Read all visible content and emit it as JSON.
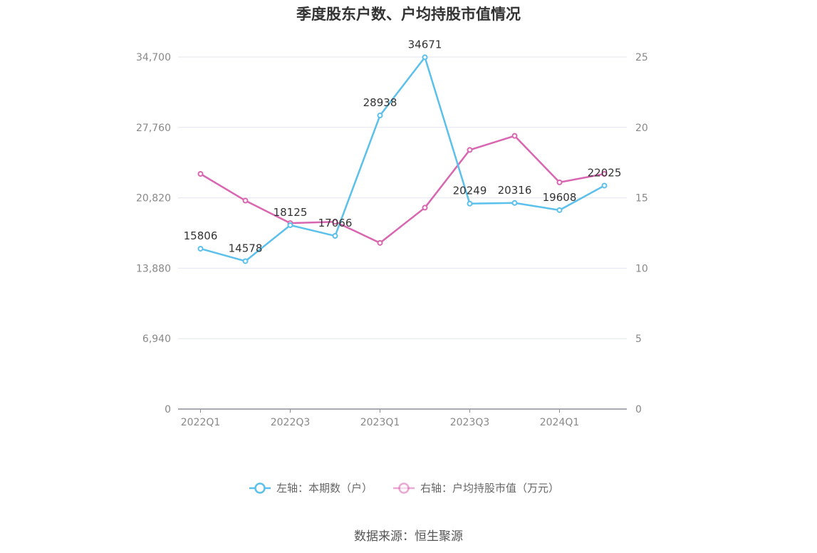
{
  "title": "季度股东户数、户均持股市值情况",
  "source": "数据来源：恒生聚源",
  "colors": {
    "left_series": "#5bc0eb",
    "right_series": "#d966b0",
    "grid": "#e3e6ef",
    "axis": "#8d8d99"
  },
  "chart_data": {
    "type": "line",
    "title": "季度股东户数、户均持股市值情况",
    "categories": [
      "2022Q1",
      "2022Q2",
      "2022Q3",
      "2022Q4",
      "2023Q1",
      "2023Q2",
      "2023Q3",
      "2023Q4",
      "2024Q1",
      "2024Q2"
    ],
    "x_tick_labels": [
      "2022Q1",
      "2022Q3",
      "2023Q1",
      "2023Q3",
      "2024Q1"
    ],
    "y_left": {
      "ticks": [
        "0",
        "6,940",
        "13,880",
        "20,820",
        "27,760",
        "34,700"
      ],
      "min": 0,
      "max": 34700
    },
    "y_right": {
      "ticks": [
        "0",
        "5",
        "10",
        "15",
        "20",
        "25"
      ],
      "min": 0,
      "max": 25
    },
    "grid": true,
    "legend_position": "bottom-center",
    "series": [
      {
        "name": "左轴：本期数（户）",
        "axis": "left",
        "show_labels": true,
        "values": [
          15806,
          14578,
          18125,
          17066,
          28938,
          34671,
          20249,
          20316,
          19608,
          22025
        ]
      },
      {
        "name": "右轴：户均持股市值（万元）",
        "axis": "right",
        "show_labels": false,
        "values": [
          16.7,
          14.8,
          13.2,
          13.3,
          11.8,
          14.3,
          18.4,
          19.4,
          16.1,
          16.7
        ]
      }
    ]
  }
}
